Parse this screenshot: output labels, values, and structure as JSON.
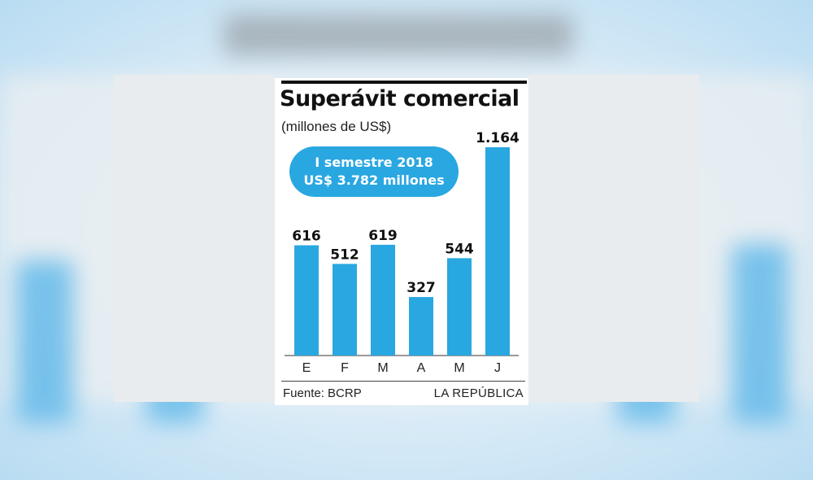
{
  "chart_data": {
    "type": "bar",
    "title": "Superávit comercial",
    "subtitle": "(millones de US$)",
    "categories": [
      "E",
      "F",
      "M",
      "A",
      "M",
      "J"
    ],
    "values": [
      616,
      512,
      619,
      327,
      544,
      1164
    ],
    "value_labels": [
      "616",
      "512",
      "619",
      "327",
      "544",
      "1.164"
    ],
    "ylim": [
      0,
      1164
    ],
    "grid": false,
    "bar_color": "#29a7e1",
    "annotation": {
      "line1": "I semestre 2018",
      "line2": "US$ 3.782 millones"
    }
  },
  "footer": {
    "source": "Fuente: BCRP",
    "publisher": "LA REPÚBLICA"
  }
}
